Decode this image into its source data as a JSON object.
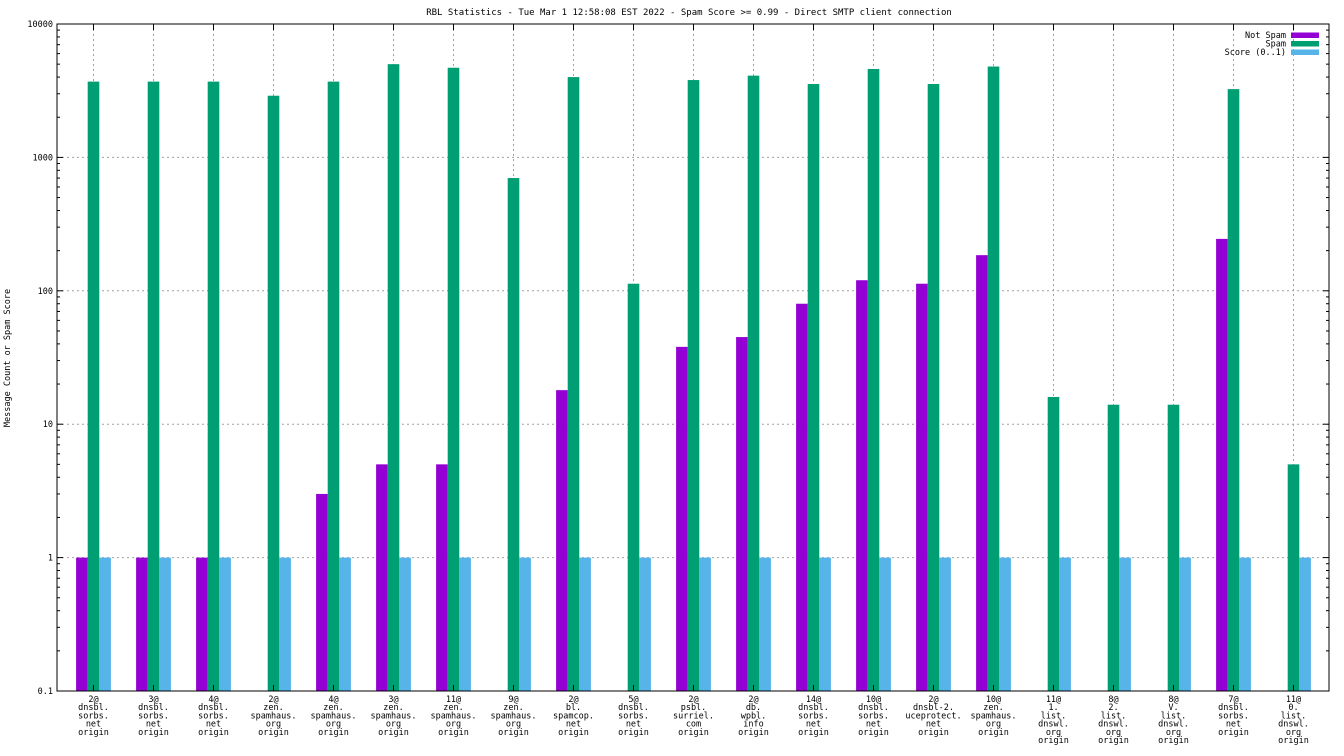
{
  "chart_data": {
    "type": "bar",
    "title": "RBL Statistics - Tue Mar  1 12:58:08 EST 2022 - Spam Score >= 0.99 - Direct SMTP client connection",
    "xlabel": "",
    "ylabel": "Message Count or Spam Score",
    "yscale": "log",
    "ylim": [
      0.1,
      10000
    ],
    "yticks": [
      "0.1",
      "1",
      "10",
      "100",
      "1000",
      "10000"
    ],
    "grid": true,
    "legend_position": "top-right",
    "categories": [
      [
        "2@",
        "dnsbl.",
        "sorbs.",
        "net",
        "origin"
      ],
      [
        "3@",
        "dnsbl.",
        "sorbs.",
        "net",
        "origin"
      ],
      [
        "4@",
        "dnsbl.",
        "sorbs.",
        "net",
        "origin"
      ],
      [
        "2@",
        "zen.",
        "spamhaus.",
        "org",
        "origin"
      ],
      [
        "4@",
        "zen.",
        "spamhaus.",
        "org",
        "origin"
      ],
      [
        "3@",
        "zen.",
        "spamhaus.",
        "org",
        "origin"
      ],
      [
        "11@",
        "zen.",
        "spamhaus.",
        "org",
        "origin"
      ],
      [
        "9@",
        "zen.",
        "spamhaus.",
        "org",
        "origin"
      ],
      [
        "2@",
        "bl.",
        "spamcop.",
        "net",
        "origin"
      ],
      [
        "5@",
        "dnsbl.",
        "sorbs.",
        "net",
        "origin"
      ],
      [
        "2@",
        "psbl.",
        "surriel.",
        "com",
        "origin"
      ],
      [
        "2@",
        "db.",
        "wpbl.",
        "info",
        "origin"
      ],
      [
        "14@",
        "dnsbl.",
        "sorbs.",
        "net",
        "origin"
      ],
      [
        "10@",
        "dnsbl.",
        "sorbs.",
        "net",
        "origin"
      ],
      [
        "2@",
        "dnsbl-2.",
        "uceprotect.",
        "net",
        "origin"
      ],
      [
        "10@",
        "zen.",
        "spamhaus.",
        "org",
        "origin"
      ],
      [
        "11@",
        "1.",
        "list.",
        "dnswl.",
        "org",
        "origin"
      ],
      [
        "8@",
        "2.",
        "list.",
        "dnswl.",
        "org",
        "origin"
      ],
      [
        "8@",
        "V.",
        "list.",
        "dnswl.",
        "org",
        "origin"
      ],
      [
        "7@",
        "dnsbl.",
        "sorbs.",
        "net",
        "origin"
      ],
      [
        "11@",
        "0.",
        "list.",
        "dnswl.",
        "org",
        "origin"
      ]
    ],
    "series": [
      {
        "name": "Not Spam",
        "color": "#9400d3",
        "values": [
          1,
          1,
          1,
          null,
          3,
          5,
          5,
          null,
          18,
          null,
          38,
          45,
          80,
          120,
          113,
          185,
          null,
          null,
          null,
          245,
          null
        ]
      },
      {
        "name": "Spam",
        "color": "#009e73",
        "values": [
          3700,
          3700,
          3700,
          2900,
          3700,
          5000,
          4700,
          700,
          4000,
          113,
          3800,
          4100,
          3550,
          4600,
          3550,
          4800,
          16,
          14,
          14,
          3250,
          5
        ]
      },
      {
        "name": "Score (0..1)",
        "color": "#56b4e9",
        "values": [
          1,
          1,
          1,
          1,
          1,
          1,
          1,
          1,
          1,
          1,
          1,
          1,
          1,
          1,
          1,
          1,
          1,
          1,
          1,
          1,
          1
        ]
      }
    ]
  }
}
